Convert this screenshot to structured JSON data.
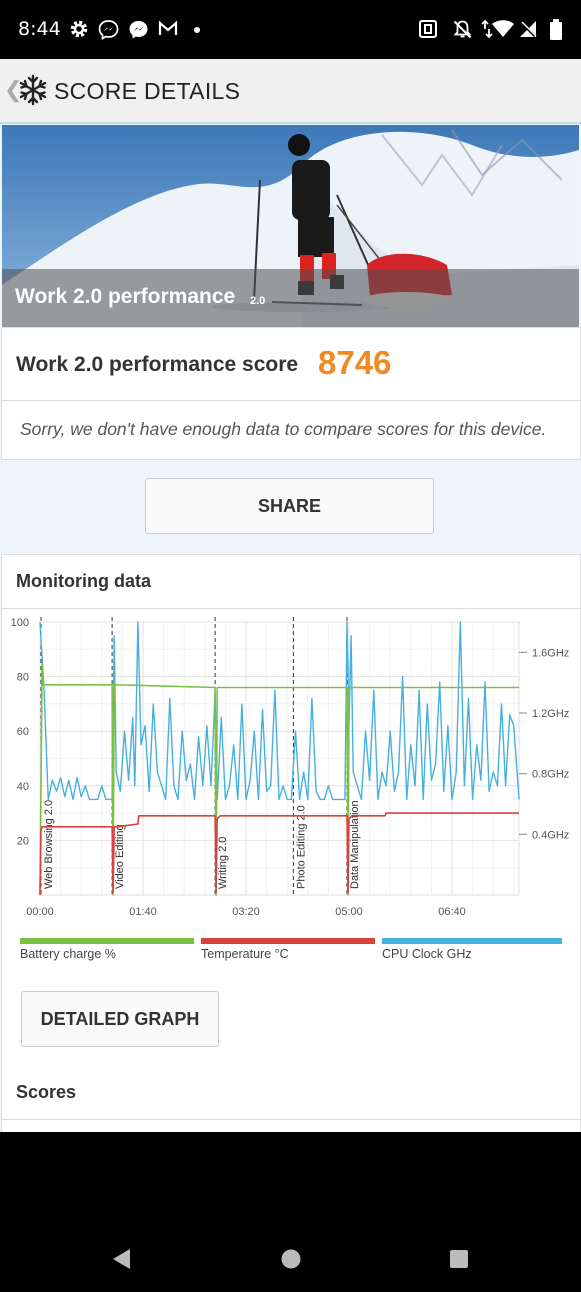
{
  "status_bar": {
    "time": "8:44"
  },
  "header": {
    "title": "SCORE DETAILS"
  },
  "hero": {
    "title": "Work 2.0 performance",
    "version": "2.0"
  },
  "score": {
    "label": "Work 2.0 performance score",
    "value": "8746",
    "compare_note": "Sorry, we don't have enough data to compare scores for this device."
  },
  "share_button": "SHARE",
  "monitoring": {
    "title": "Monitoring data",
    "detailed_graph_button": "DETAILED GRAPH",
    "legend": [
      {
        "label": "Battery charge %",
        "color": "#7ac143"
      },
      {
        "label": "Temperature °C",
        "color": "#d9413e"
      },
      {
        "label": "CPU Clock GHz",
        "color": "#47b0de"
      }
    ]
  },
  "scores_title": "Scores",
  "chart_data": {
    "type": "line",
    "x_ticks": [
      "00:00",
      "01:40",
      "03:20",
      "05:00",
      "06:40"
    ],
    "x_tick_seconds": [
      0,
      100,
      200,
      300,
      400
    ],
    "xlim": [
      0,
      465
    ],
    "y_left_ticks": [
      20,
      40,
      60,
      80,
      100
    ],
    "ylim_left": [
      0,
      100
    ],
    "y_right_ticks": [
      "0.4GHz",
      "0.8GHz",
      "1.2GHz",
      "1.6GHz"
    ],
    "y_right_values": [
      0.4,
      0.8,
      1.2,
      1.6
    ],
    "ylim_right": [
      0,
      1.8
    ],
    "grid": true,
    "sections": [
      {
        "label": "Web Browsing 2.0",
        "start": 0
      },
      {
        "label": "Video Editing",
        "start": 70
      },
      {
        "label": "Writing 2.0",
        "start": 170
      },
      {
        "label": "Photo Editing 2.0",
        "start": 246
      },
      {
        "label": "Data Manipulation",
        "start": 298
      }
    ],
    "series": [
      {
        "name": "Battery charge %",
        "axis": "left",
        "x": [
          0,
          2,
          3,
          70,
          71,
          72,
          74,
          170,
          171,
          172,
          175,
          298,
          299,
          300,
          302,
          465
        ],
        "values": [
          0,
          85,
          77,
          77,
          0,
          77,
          77,
          76,
          0,
          76,
          76,
          76,
          0,
          76,
          76,
          76
        ]
      },
      {
        "name": "Temperature °C",
        "axis": "left",
        "x": [
          0,
          1,
          2,
          70,
          71,
          72,
          75,
          95,
          96,
          170,
          171,
          172,
          175,
          298,
          299,
          300,
          303,
          335,
          336,
          465
        ],
        "values": [
          0,
          24,
          25,
          25,
          1,
          25,
          25,
          26,
          29,
          29,
          1,
          28,
          29,
          29,
          1,
          28,
          29,
          29,
          30,
          30
        ]
      },
      {
        "name": "CPU Clock GHz",
        "axis": "left",
        "x": [
          0,
          4,
          8,
          12,
          16,
          20,
          24,
          28,
          32,
          36,
          40,
          44,
          48,
          52,
          56,
          60,
          64,
          68,
          70,
          72,
          74,
          78,
          82,
          86,
          90,
          92,
          95,
          98,
          102,
          106,
          110,
          114,
          118,
          122,
          126,
          130,
          134,
          138,
          142,
          146,
          150,
          154,
          158,
          162,
          166,
          170,
          172,
          176,
          180,
          184,
          188,
          192,
          196,
          200,
          204,
          208,
          212,
          216,
          220,
          224,
          228,
          232,
          236,
          240,
          244,
          248,
          252,
          256,
          260,
          264,
          268,
          272,
          276,
          280,
          284,
          288,
          292,
          296,
          298,
          300,
          302,
          304,
          308,
          312,
          316,
          320,
          324,
          328,
          332,
          336,
          340,
          344,
          348,
          352,
          356,
          360,
          364,
          368,
          372,
          376,
          380,
          384,
          388,
          392,
          396,
          400,
          404,
          408,
          412,
          416,
          420,
          424,
          428,
          432,
          436,
          440,
          444,
          448,
          452,
          456,
          460,
          465
        ],
        "values": [
          100,
          75,
          35,
          42,
          38,
          43,
          36,
          42,
          35,
          43,
          36,
          40,
          35,
          35,
          35,
          40,
          35,
          35,
          35,
          95,
          45,
          38,
          60,
          42,
          65,
          40,
          100,
          55,
          62,
          38,
          70,
          45,
          40,
          35,
          72,
          40,
          35,
          60,
          42,
          48,
          35,
          58,
          40,
          62,
          40,
          74,
          35,
          65,
          35,
          40,
          55,
          35,
          70,
          35,
          42,
          60,
          35,
          68,
          38,
          40,
          75,
          35,
          40,
          35,
          35,
          60,
          35,
          45,
          35,
          72,
          38,
          35,
          35,
          40,
          35,
          35,
          35,
          35,
          100,
          62,
          95,
          45,
          40,
          35,
          60,
          42,
          75,
          35,
          45,
          40,
          60,
          38,
          45,
          80,
          35,
          55,
          40,
          75,
          35,
          70,
          42,
          48,
          78,
          38,
          62,
          35,
          45,
          100,
          40,
          72,
          35,
          55,
          42,
          78,
          38,
          45,
          40,
          70,
          40,
          66,
          62,
          35
        ]
      }
    ]
  }
}
